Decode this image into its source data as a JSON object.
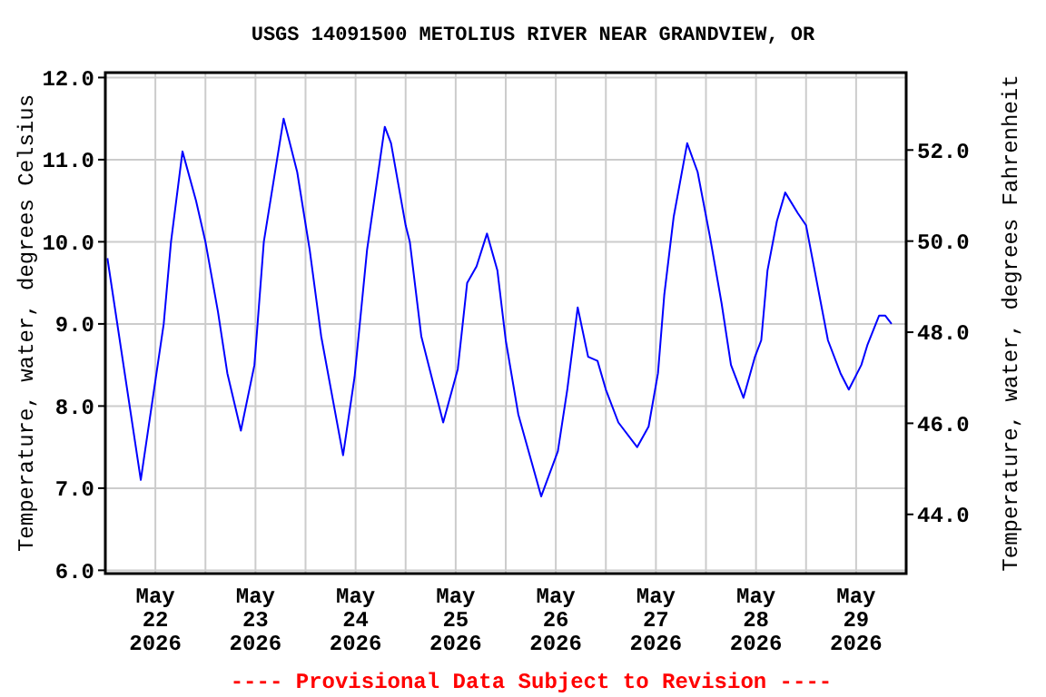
{
  "chart_data": {
    "type": "line",
    "title": "USGS 14091500 METOLIUS RIVER NEAR GRANDVIEW, OR",
    "ylabel": "Temperature, water, degrees Celsius",
    "y2label": "Temperature, water, degrees Fahrenheit",
    "annotations": [
      "---- Provisional Data Subject to Revision ----"
    ],
    "x": [
      "2026-05-22T00:30",
      "2026-05-22T08:30",
      "2026-05-22T14:00",
      "2026-05-22T15:45",
      "2026-05-22T18:30",
      "2026-05-22T21:45",
      "2026-05-23T00:00",
      "2026-05-23T03:00",
      "2026-05-23T05:15",
      "2026-05-23T08:30",
      "2026-05-23T11:45",
      "2026-05-23T14:00",
      "2026-05-23T18:45",
      "2026-05-23T22:00",
      "2026-05-24T01:00",
      "2026-05-24T03:45",
      "2026-05-24T09:00",
      "2026-05-24T11:45",
      "2026-05-24T14:45",
      "2026-05-24T19:00",
      "2026-05-24T20:30",
      "2026-05-25T00:00",
      "2026-05-25T01:00",
      "2026-05-25T03:45",
      "2026-05-25T09:00",
      "2026-05-25T12:30",
      "2026-05-25T14:45",
      "2026-05-25T17:00",
      "2026-05-25T19:30",
      "2026-05-25T22:00",
      "2026-05-26T00:00",
      "2026-05-26T03:00",
      "2026-05-26T08:30",
      "2026-05-26T12:30",
      "2026-05-26T14:45",
      "2026-05-26T17:15",
      "2026-05-26T19:45",
      "2026-05-26T22:00",
      "2026-05-27T00:00",
      "2026-05-27T03:00",
      "2026-05-27T07:30",
      "2026-05-27T10:15",
      "2026-05-27T12:30",
      "2026-05-27T14:00",
      "2026-05-27T16:15",
      "2026-05-27T19:30",
      "2026-05-27T22:00",
      "2026-05-28T01:00",
      "2026-05-28T03:45",
      "2026-05-28T06:00",
      "2026-05-28T09:00",
      "2026-05-28T11:45",
      "2026-05-28T13:15",
      "2026-05-28T14:45",
      "2026-05-28T17:00",
      "2026-05-28T19:00",
      "2026-05-28T22:00",
      "2026-05-29T00:00",
      "2026-05-29T02:15",
      "2026-05-29T05:15",
      "2026-05-29T08:15",
      "2026-05-29T10:15",
      "2026-05-29T13:15",
      "2026-05-29T14:45",
      "2026-05-29T17:30",
      "2026-05-29T19:00",
      "2026-05-29T20:30"
    ],
    "series": [
      {
        "color": "#0000ff",
        "values": [
          9.8,
          7.1,
          9.0,
          10.0,
          11.1,
          10.5,
          10.0,
          9.15,
          8.4,
          7.7,
          8.5,
          10.0,
          11.5,
          10.85,
          9.9,
          8.85,
          7.4,
          8.35,
          9.9,
          11.4,
          11.2,
          10.2,
          10.0,
          8.85,
          7.8,
          8.45,
          9.5,
          9.7,
          10.1,
          9.65,
          8.8,
          7.9,
          6.9,
          7.45,
          8.2,
          9.2,
          8.6,
          8.55,
          8.2,
          7.8,
          7.5,
          7.75,
          8.4,
          9.35,
          10.3,
          11.2,
          10.85,
          10.05,
          9.25,
          8.5,
          8.1,
          8.6,
          8.8,
          9.65,
          10.25,
          10.6,
          10.35,
          10.2,
          9.6,
          8.8,
          8.4,
          8.2,
          8.5,
          8.75,
          9.1,
          9.1,
          9.0
        ]
      }
    ],
    "xlim": [
      "2026-05-22T00:00",
      "2026-05-30T00:00"
    ],
    "xticks": [
      {
        "value": "2026-05-22T12:00",
        "label": "May\n22\n2026"
      },
      {
        "value": "2026-05-23T00:00",
        "label": null
      },
      {
        "value": "2026-05-23T12:00",
        "label": "May\n23\n2026"
      },
      {
        "value": "2026-05-24T00:00",
        "label": null
      },
      {
        "value": "2026-05-24T12:00",
        "label": "May\n24\n2026"
      },
      {
        "value": "2026-05-25T00:00",
        "label": null
      },
      {
        "value": "2026-05-25T12:00",
        "label": "May\n25\n2026"
      },
      {
        "value": "2026-05-26T00:00",
        "label": null
      },
      {
        "value": "2026-05-26T12:00",
        "label": "May\n26\n2026"
      },
      {
        "value": "2026-05-27T00:00",
        "label": null
      },
      {
        "value": "2026-05-27T12:00",
        "label": "May\n27\n2026"
      },
      {
        "value": "2026-05-28T00:00",
        "label": null
      },
      {
        "value": "2026-05-28T12:00",
        "label": "May\n28\n2026"
      },
      {
        "value": "2026-05-29T00:00",
        "label": null
      },
      {
        "value": "2026-05-29T12:00",
        "label": "May\n29\n2026"
      }
    ],
    "ylim": [
      5.96,
      12.06
    ],
    "yticks": [
      {
        "value": 6,
        "label": "6.0"
      },
      {
        "value": 7,
        "label": "7.0"
      },
      {
        "value": 8,
        "label": "8.0"
      },
      {
        "value": 9,
        "label": "9.0"
      },
      {
        "value": 10,
        "label": "10.0"
      },
      {
        "value": 11,
        "label": "11.0"
      },
      {
        "value": 12,
        "label": "12.0"
      }
    ],
    "y2lim": [
      42.7,
      53.7
    ],
    "y2ticks": [
      {
        "value": 44,
        "label": "44.0"
      },
      {
        "value": 46,
        "label": "46.0"
      },
      {
        "value": 48,
        "label": "48.0"
      },
      {
        "value": 50,
        "label": "50.0"
      },
      {
        "value": 52,
        "label": "52.0"
      }
    ],
    "grid": true
  }
}
